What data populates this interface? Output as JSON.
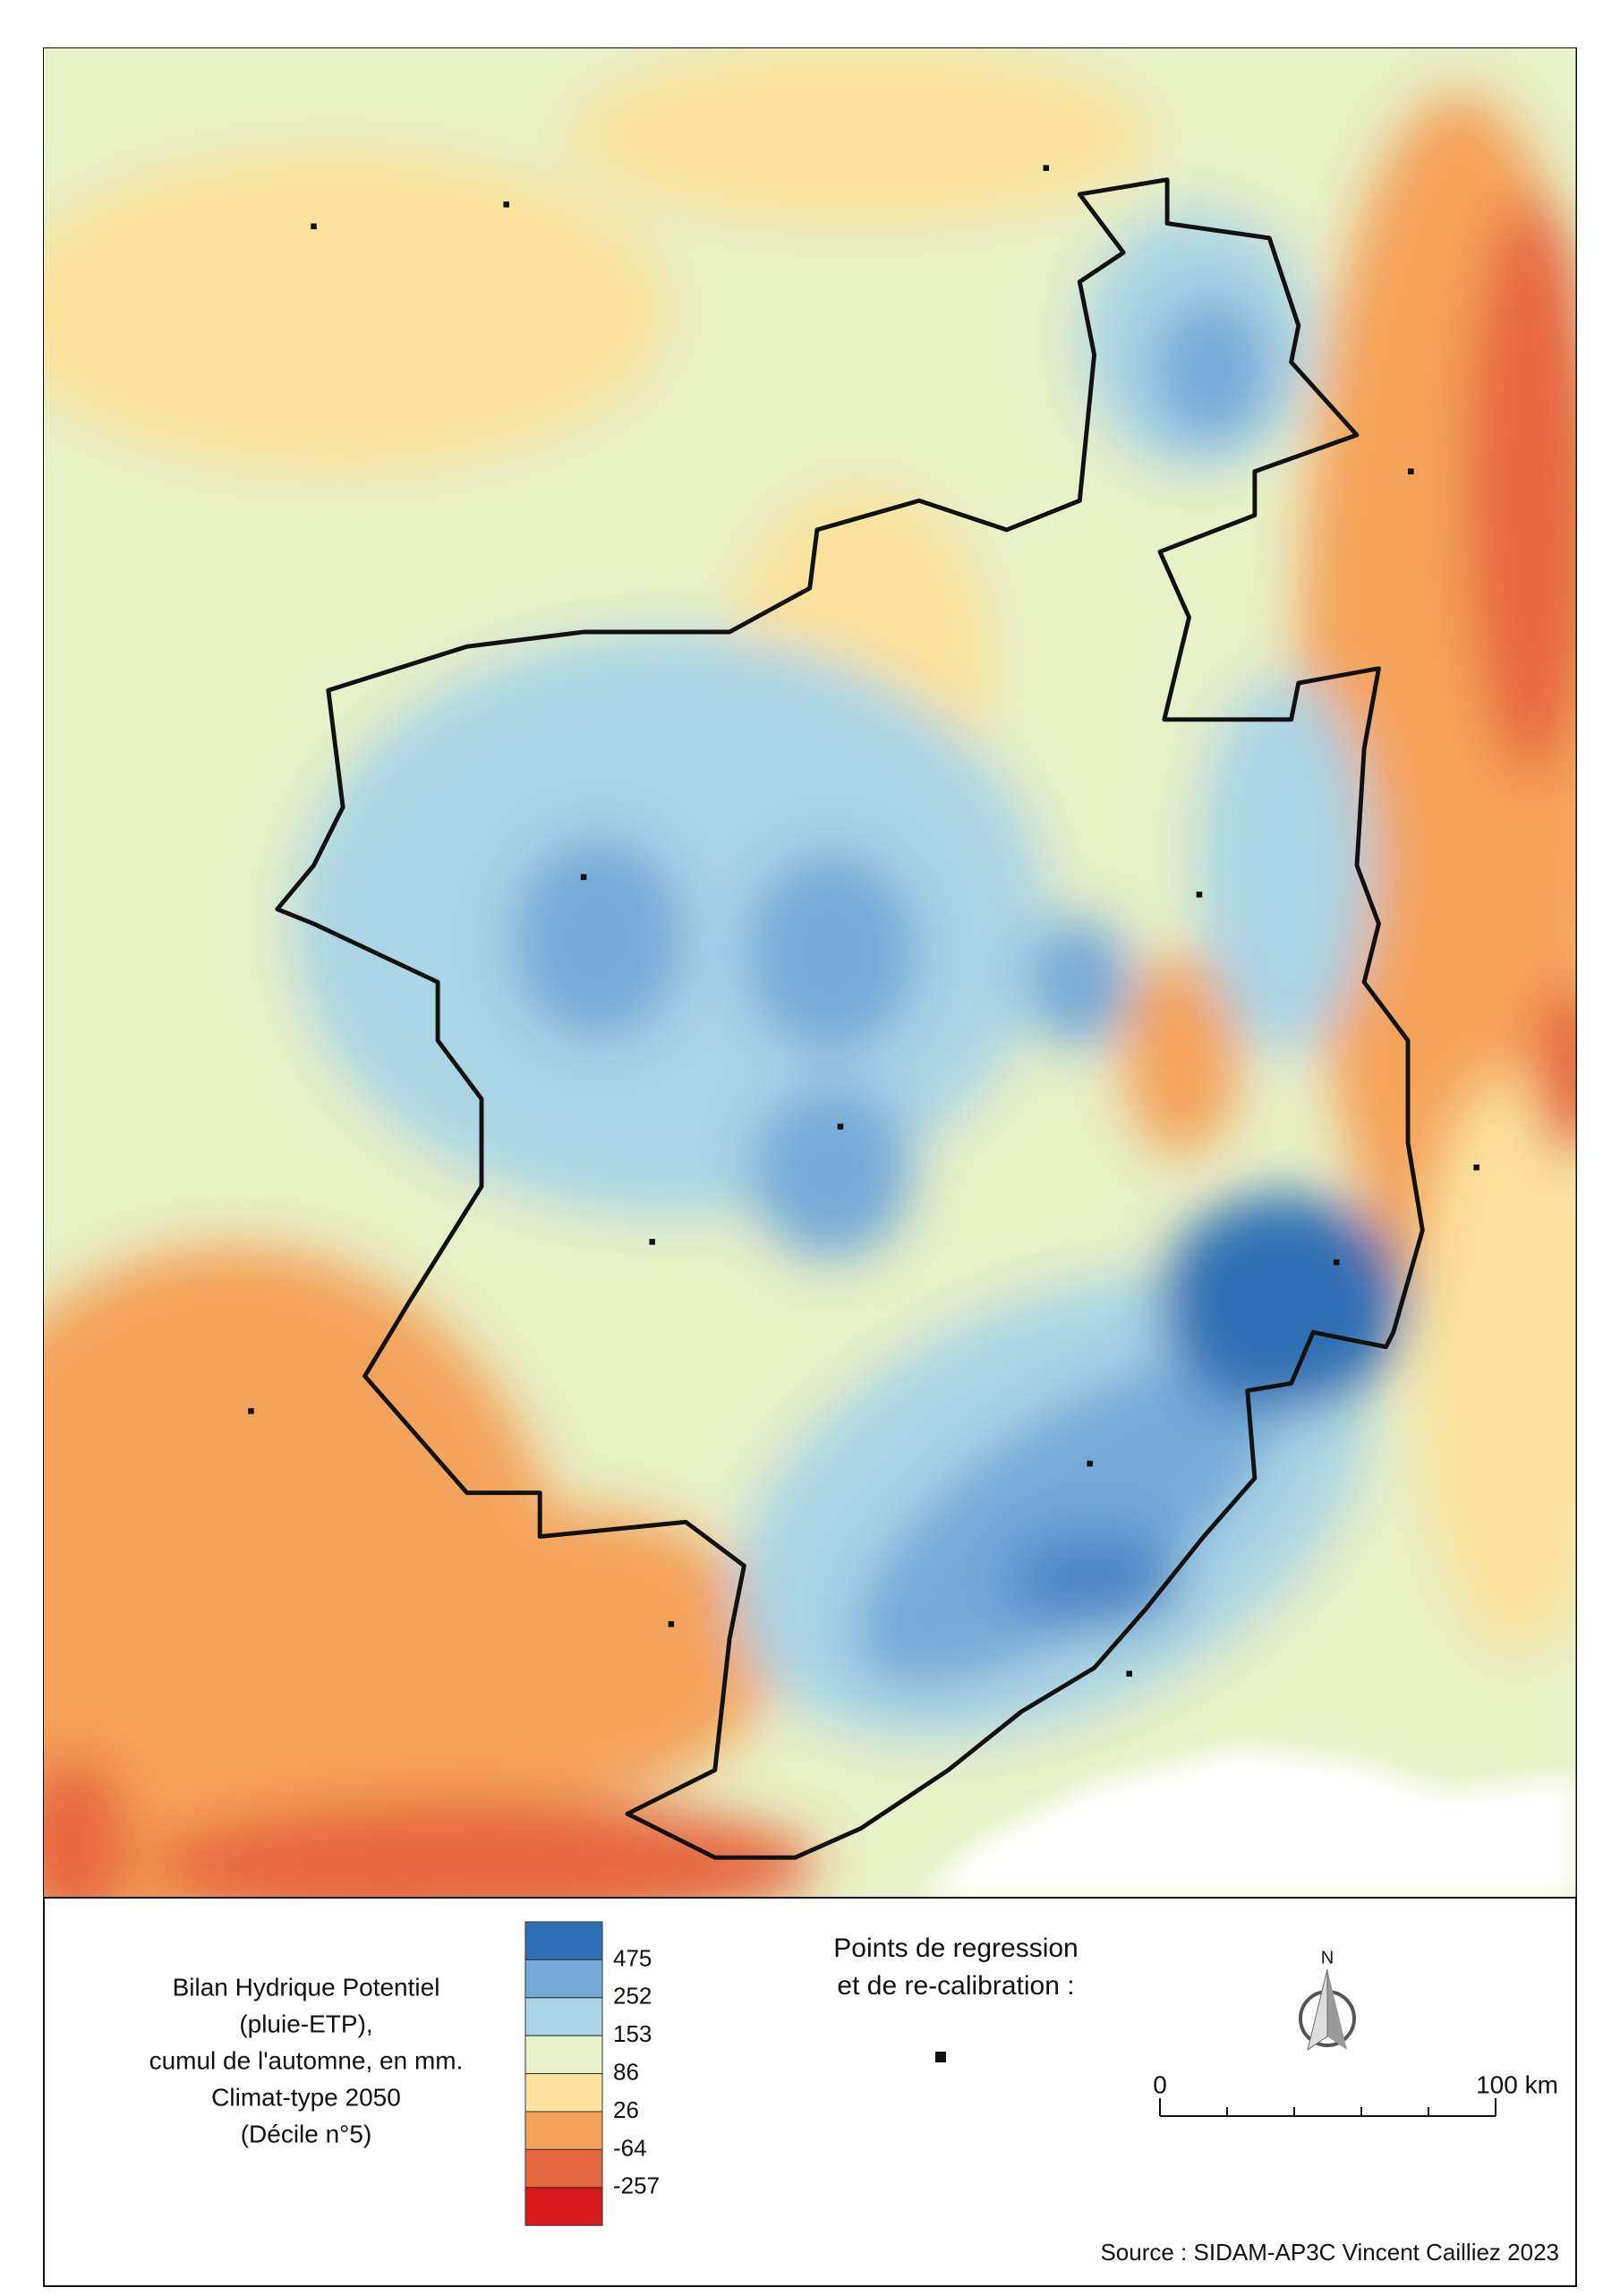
{
  "legend": {
    "title_lines": [
      "Bilan Hydrique Potentiel",
      "(pluie-ETP),",
      "cumul de l'automne, en mm.",
      "Climat-type 2050",
      "(Décile n°5)"
    ],
    "breaks": [
      475,
      252,
      153,
      86,
      26,
      -64,
      -257
    ],
    "colors": [
      "#2f6fb3",
      "#74a9d8",
      "#abd4e4",
      "#e8f1c8",
      "#fbe29c",
      "#f4a35c",
      "#e6673f",
      "#d7191c"
    ]
  },
  "points_legend": {
    "lines": [
      "Points de regression",
      "et de re-calibration :"
    ]
  },
  "north": "N",
  "scale_bar": {
    "labels": [
      "0",
      "100 km"
    ]
  },
  "source": "Source : SIDAM-AP3C Vincent Cailliez 2023"
}
